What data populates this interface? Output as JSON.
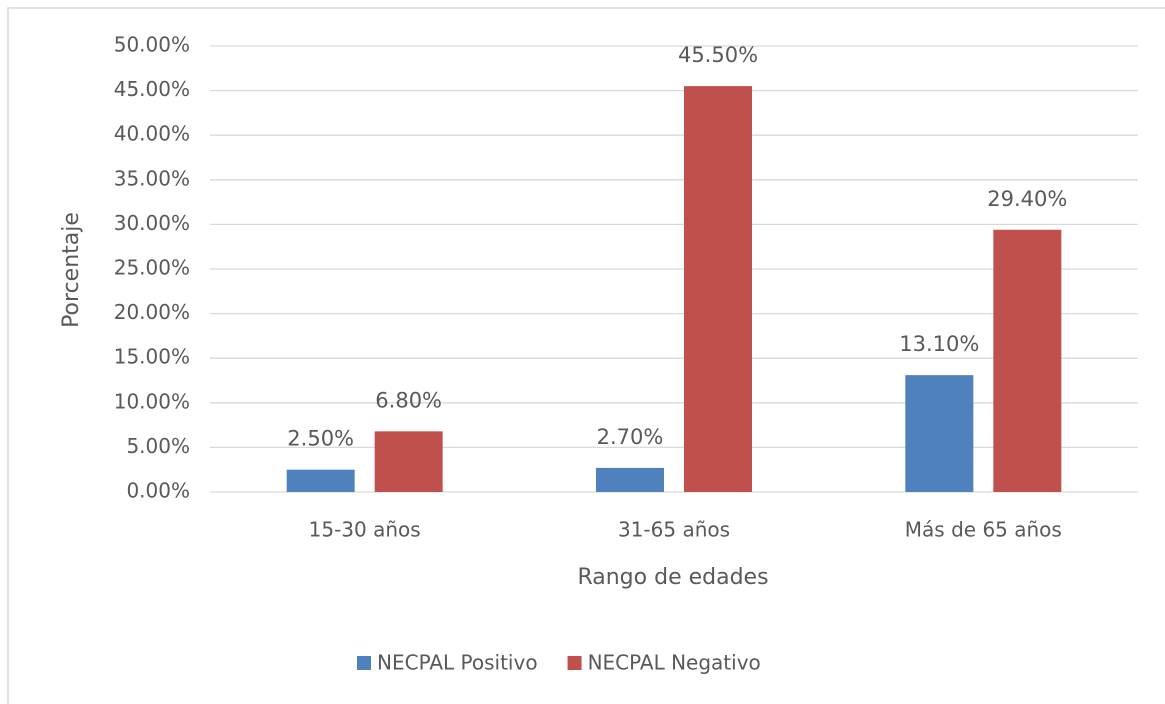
{
  "chart_data": {
    "type": "bar",
    "x_label": "Rango de edades",
    "y_label": "Porcentaje",
    "categories": [
      "15-30 años",
      "31-65 años",
      "Más de 65 años"
    ],
    "series": [
      {
        "name": "NECPAL Positivo",
        "color": "#4f81bd",
        "values": [
          2.5,
          2.7,
          13.1
        ],
        "value_labels": [
          "2.50%",
          "2.70%",
          "13.10%"
        ]
      },
      {
        "name": "NECPAL Negativo",
        "color": "#c0504d",
        "values": [
          6.8,
          45.5,
          29.4
        ],
        "value_labels": [
          "6.80%",
          "45.50%",
          "29.40%"
        ]
      }
    ],
    "ylim": [
      0,
      50
    ],
    "yticks": [
      {
        "value": 0,
        "label": "0.00%"
      },
      {
        "value": 5,
        "label": "5.00%"
      },
      {
        "value": 10,
        "label": "10.00%"
      },
      {
        "value": 15,
        "label": "15.00%"
      },
      {
        "value": 20,
        "label": "20.00%"
      },
      {
        "value": 25,
        "label": "25.00%"
      },
      {
        "value": 30,
        "label": "30.00%"
      },
      {
        "value": 35,
        "label": "35.00%"
      },
      {
        "value": 40,
        "label": "40.00%"
      },
      {
        "value": 45,
        "label": "45.00%"
      },
      {
        "value": 50,
        "label": "50.00%"
      }
    ],
    "grid": true,
    "legend": "bottom"
  }
}
